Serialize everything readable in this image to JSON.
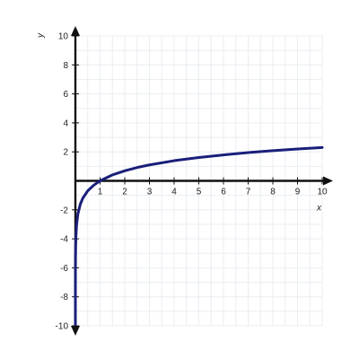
{
  "chart_data": {
    "type": "line",
    "title": "",
    "xlabel": "x",
    "ylabel": "y",
    "xlim": [
      0,
      10
    ],
    "ylim": [
      -10,
      10
    ],
    "x_ticks": [
      1,
      2,
      3,
      4,
      5,
      6,
      7,
      8,
      9,
      10
    ],
    "y_ticks": [
      10,
      8,
      6,
      4,
      2,
      -2,
      -4,
      -6,
      -8,
      -10
    ],
    "grid": true,
    "legend": "none",
    "series": [
      {
        "color": "#1a1f7a",
        "x": [
          5e-05,
          0.0001,
          0.0002,
          0.0005,
          0.001,
          0.002,
          0.005,
          0.01,
          0.02,
          0.05,
          0.1,
          0.2,
          0.3,
          0.5,
          0.75,
          1,
          1.5,
          2,
          2.5,
          3,
          4,
          5,
          6,
          7,
          8,
          9,
          10
        ],
        "y": [
          -9.9,
          -9.21,
          -8.52,
          -7.6,
          -6.91,
          -6.21,
          -5.3,
          -4.61,
          -3.91,
          -3.0,
          -2.3,
          -1.61,
          -1.2,
          -0.69,
          -0.29,
          0,
          0.41,
          0.69,
          0.92,
          1.1,
          1.39,
          1.61,
          1.79,
          1.95,
          2.08,
          2.2,
          2.3
        ]
      }
    ]
  }
}
